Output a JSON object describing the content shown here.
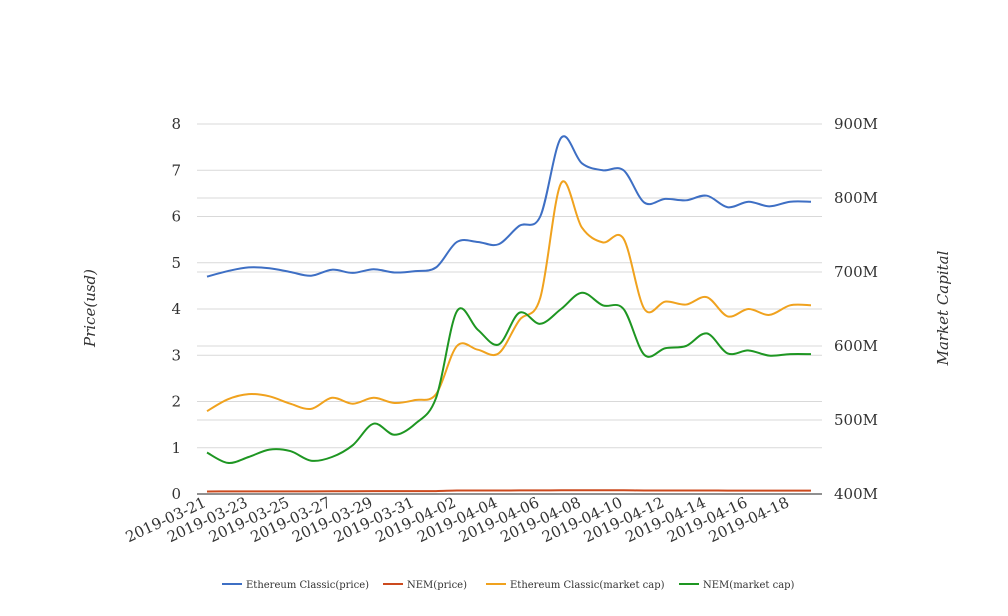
{
  "chart_data": {
    "type": "line",
    "title": "",
    "xlabel": "",
    "ylabel": "Price(usd)",
    "y2label": "Market Capital",
    "ylim": [
      0,
      8
    ],
    "y2lim": [
      400,
      900
    ],
    "yticks": [
      "0",
      "1",
      "2",
      "3",
      "4",
      "5",
      "6",
      "7",
      "8"
    ],
    "y2ticks": [
      "400M",
      "500M",
      "600M",
      "700M",
      "800M",
      "900M"
    ],
    "x": [
      "2019-03-21",
      "2019-03-22",
      "2019-03-23",
      "2019-03-24",
      "2019-03-25",
      "2019-03-26",
      "2019-03-27",
      "2019-03-28",
      "2019-03-29",
      "2019-03-30",
      "2019-03-31",
      "2019-04-01",
      "2019-04-02",
      "2019-04-03",
      "2019-04-04",
      "2019-04-05",
      "2019-04-06",
      "2019-04-07",
      "2019-04-08",
      "2019-04-09",
      "2019-04-10",
      "2019-04-11",
      "2019-04-12",
      "2019-04-13",
      "2019-04-14",
      "2019-04-15",
      "2019-04-16",
      "2019-04-17",
      "2019-04-18",
      "2019-04-19"
    ],
    "xticks": [
      "2019-03-21",
      "2019-03-23",
      "2019-03-25",
      "2019-03-27",
      "2019-03-29",
      "2019-03-31",
      "2019-04-02",
      "2019-04-04",
      "2019-04-06",
      "2019-04-08",
      "2019-04-10",
      "2019-04-12",
      "2019-04-14",
      "2019-04-16",
      "2019-04-18"
    ],
    "grid": true,
    "legend_position": "bottom",
    "series": [
      {
        "name": "Ethereum Classic(price)",
        "axis": "left",
        "color": "#3e6fc4",
        "values": [
          4.7,
          4.82,
          4.9,
          4.88,
          4.8,
          4.72,
          4.85,
          4.78,
          4.86,
          4.79,
          4.82,
          4.9,
          5.45,
          5.45,
          5.4,
          5.8,
          6.0,
          7.7,
          7.15,
          7.0,
          7.0,
          6.3,
          6.38,
          6.35,
          6.45,
          6.2,
          6.32,
          6.22,
          6.32,
          6.32
        ]
      },
      {
        "name": "NEM(price)",
        "axis": "left",
        "color": "#cc4a1e",
        "values": [
          0.055,
          0.056,
          0.057,
          0.058,
          0.058,
          0.057,
          0.059,
          0.06,
          0.061,
          0.062,
          0.062,
          0.063,
          0.075,
          0.076,
          0.075,
          0.078,
          0.078,
          0.08,
          0.082,
          0.081,
          0.08,
          0.075,
          0.075,
          0.075,
          0.076,
          0.074,
          0.074,
          0.073,
          0.074,
          0.074
        ]
      },
      {
        "name": "Ethereum Classic(market cap)",
        "axis": "right",
        "color": "#f0a21e",
        "values": [
          512,
          528,
          535,
          532,
          522,
          515,
          530,
          522,
          530,
          523,
          527,
          535,
          600,
          595,
          590,
          635,
          665,
          820,
          760,
          740,
          745,
          650,
          660,
          656,
          666,
          640,
          650,
          642,
          655,
          655
        ]
      },
      {
        "name": "NEM(market cap)",
        "axis": "right",
        "color": "#1e9622",
        "values": [
          456,
          442,
          450,
          460,
          458,
          445,
          450,
          466,
          495,
          480,
          495,
          530,
          647,
          622,
          602,
          645,
          630,
          650,
          672,
          655,
          650,
          588,
          597,
          600,
          617,
          590,
          594,
          587,
          589,
          589
        ]
      }
    ]
  }
}
